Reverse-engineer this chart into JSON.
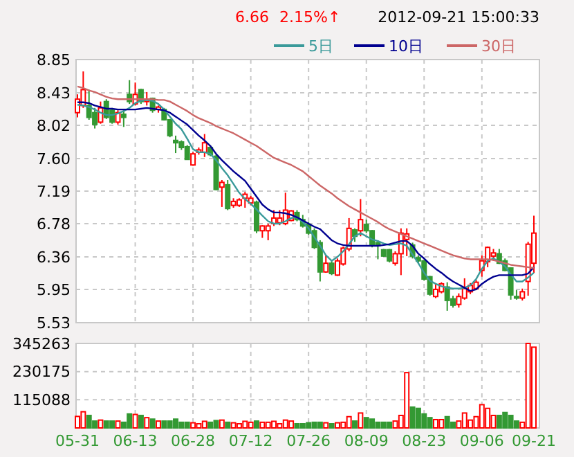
{
  "chart_data": [
    {
      "type": "candlestick",
      "annotations": [
        "6.66",
        "2.15%↑",
        "2012-09-21 15:00:33"
      ],
      "categories": [
        null,
        null,
        null,
        null,
        null,
        null,
        null,
        null,
        null,
        null,
        null,
        null,
        null,
        null,
        null,
        null,
        null,
        null,
        null,
        null,
        null,
        null,
        null,
        null,
        null,
        null,
        null,
        null,
        null,
        null,
        null,
        null,
        null,
        null,
        null,
        null,
        null,
        null,
        null,
        null,
        null,
        null,
        null,
        null,
        null,
        null,
        null,
        null,
        null,
        null,
        null,
        null,
        null,
        null,
        null,
        null,
        null,
        null,
        null,
        null,
        null,
        null,
        null,
        null,
        null,
        null,
        null,
        null,
        null,
        null,
        null,
        null,
        null,
        null,
        null,
        null,
        null,
        null,
        null,
        null
      ],
      "ohlc": [
        [
          8.18,
          8.41,
          8.12,
          8.35
        ],
        [
          8.27,
          8.7,
          8.24,
          8.47
        ],
        [
          8.27,
          8.47,
          8.09,
          8.12
        ],
        [
          8.18,
          8.24,
          7.98,
          8.03
        ],
        [
          8.06,
          8.32,
          8.04,
          8.24
        ],
        [
          8.32,
          8.35,
          8.1,
          8.12
        ],
        [
          8.21,
          8.24,
          8.04,
          8.06
        ],
        [
          8.06,
          8.21,
          8.03,
          8.18
        ],
        [
          8.16,
          8.21,
          8.0,
          8.12
        ],
        [
          8.41,
          8.59,
          8.29,
          8.32
        ],
        [
          8.29,
          8.56,
          8.27,
          8.41
        ],
        [
          8.47,
          8.48,
          8.29,
          8.32
        ],
        [
          8.32,
          8.44,
          8.27,
          8.35
        ],
        [
          8.36,
          8.37,
          8.18,
          8.21
        ],
        [
          8.22,
          8.27,
          8.18,
          8.25
        ],
        [
          8.22,
          8.24,
          8.08,
          8.09
        ],
        [
          8.09,
          8.1,
          7.87,
          7.89
        ],
        [
          7.83,
          7.89,
          7.67,
          7.8
        ],
        [
          7.81,
          7.83,
          7.71,
          7.74
        ],
        [
          7.75,
          7.77,
          7.59,
          7.59
        ],
        [
          7.52,
          7.68,
          7.51,
          7.66
        ],
        [
          7.68,
          7.74,
          7.65,
          7.71
        ],
        [
          7.68,
          7.91,
          7.62,
          7.8
        ],
        [
          7.74,
          7.77,
          7.63,
          7.65
        ],
        [
          7.63,
          7.65,
          7.2,
          7.21
        ],
        [
          7.24,
          7.33,
          6.99,
          7.3
        ],
        [
          7.27,
          7.33,
          6.95,
          6.97
        ],
        [
          7.01,
          7.1,
          6.98,
          7.06
        ],
        [
          7.01,
          7.1,
          6.99,
          7.08
        ],
        [
          7.1,
          7.18,
          6.98,
          7.15
        ],
        [
          7.04,
          7.13,
          7.01,
          7.1
        ],
        [
          7.05,
          7.07,
          6.66,
          6.69
        ],
        [
          6.69,
          6.76,
          6.6,
          6.75
        ],
        [
          6.69,
          6.78,
          6.57,
          6.75
        ],
        [
          6.78,
          6.95,
          6.75,
          6.85
        ],
        [
          6.79,
          6.95,
          6.76,
          6.85
        ],
        [
          6.78,
          7.17,
          6.76,
          6.95
        ],
        [
          6.82,
          6.95,
          6.81,
          6.94
        ],
        [
          6.92,
          6.95,
          6.81,
          6.83
        ],
        [
          6.83,
          6.89,
          6.73,
          6.75
        ],
        [
          6.77,
          6.8,
          6.64,
          6.66
        ],
        [
          6.69,
          6.72,
          6.46,
          6.48
        ],
        [
          6.54,
          6.57,
          6.05,
          6.17
        ],
        [
          6.17,
          6.38,
          6.16,
          6.28
        ],
        [
          6.28,
          6.31,
          6.13,
          6.15
        ],
        [
          6.13,
          6.34,
          6.12,
          6.31
        ],
        [
          6.27,
          6.49,
          6.25,
          6.47
        ],
        [
          6.46,
          6.85,
          6.43,
          6.72
        ],
        [
          6.7,
          6.72,
          6.55,
          6.62
        ],
        [
          6.69,
          7.09,
          6.62,
          6.83
        ],
        [
          6.77,
          6.83,
          6.66,
          6.69
        ],
        [
          6.69,
          6.7,
          6.48,
          6.5
        ],
        [
          6.54,
          6.57,
          6.33,
          6.5
        ],
        [
          6.45,
          6.46,
          6.36,
          6.37
        ],
        [
          6.45,
          6.46,
          6.29,
          6.31
        ],
        [
          6.28,
          6.43,
          6.25,
          6.4
        ],
        [
          6.4,
          6.72,
          6.13,
          6.66
        ],
        [
          6.58,
          6.72,
          6.37,
          6.65
        ],
        [
          6.51,
          6.54,
          6.34,
          6.37
        ],
        [
          6.35,
          6.38,
          6.29,
          6.31
        ],
        [
          6.31,
          6.32,
          6.06,
          6.08
        ],
        [
          6.11,
          6.12,
          5.87,
          5.89
        ],
        [
          5.86,
          6.02,
          5.84,
          5.95
        ],
        [
          5.92,
          6.04,
          5.9,
          6.02
        ],
        [
          5.98,
          6.04,
          5.68,
          5.81
        ],
        [
          5.83,
          5.87,
          5.72,
          5.75
        ],
        [
          5.76,
          5.9,
          5.72,
          5.86
        ],
        [
          5.84,
          6.09,
          5.82,
          5.96
        ],
        [
          5.92,
          6.03,
          5.89,
          6.0
        ],
        [
          5.96,
          6.07,
          5.94,
          6.04
        ],
        [
          6.19,
          6.38,
          6.11,
          6.31
        ],
        [
          6.3,
          6.49,
          6.23,
          6.48
        ],
        [
          6.37,
          6.46,
          6.31,
          6.41
        ],
        [
          6.4,
          6.46,
          6.27,
          6.28
        ],
        [
          6.31,
          6.34,
          6.18,
          6.19
        ],
        [
          6.22,
          6.23,
          5.82,
          5.88
        ],
        [
          5.86,
          5.94,
          5.82,
          5.84
        ],
        [
          5.84,
          5.96,
          5.81,
          5.92
        ],
        [
          6.05,
          6.55,
          5.87,
          6.52
        ],
        [
          6.28,
          6.88,
          6.16,
          6.66
        ]
      ],
      "series": [
        {
          "name": "5日",
          "type": "line",
          "color": "#3a9a9a",
          "values": [
            8.28,
            8.27,
            8.25,
            8.22,
            8.18,
            8.15,
            8.15,
            8.17,
            8.2,
            8.24,
            8.3,
            8.33,
            8.34,
            8.33,
            8.29,
            8.22,
            8.13,
            8.04,
            7.97,
            7.85,
            7.72,
            7.68,
            7.68,
            7.66,
            7.58,
            7.48,
            7.39,
            7.28,
            7.17,
            7.09,
            7.03,
            6.96,
            6.88,
            6.81,
            6.78,
            6.78,
            6.81,
            6.85,
            6.86,
            6.8,
            6.72,
            6.61,
            6.5,
            6.38,
            6.31,
            6.36,
            6.43,
            6.52,
            6.62,
            6.66,
            6.62,
            6.58,
            6.56,
            6.53,
            6.51,
            6.52,
            6.53,
            6.5,
            6.39,
            6.28,
            6.16,
            6.06,
            6.02,
            5.99,
            5.97,
            5.96,
            5.96,
            5.97,
            6.0,
            6.08,
            6.21,
            6.31,
            6.34,
            6.3,
            6.24,
            6.14,
            6.05,
            6.05,
            6.1,
            6.16
          ]
        },
        {
          "name": "10日",
          "type": "line",
          "color": "#000090",
          "values": [
            8.31,
            8.31,
            8.3,
            8.27,
            8.25,
            8.23,
            8.23,
            8.22,
            8.22,
            8.22,
            8.22,
            8.23,
            8.24,
            8.23,
            8.22,
            8.21,
            8.18,
            8.13,
            8.08,
            8.03,
            7.96,
            7.89,
            7.83,
            7.76,
            7.66,
            7.58,
            7.51,
            7.44,
            7.38,
            7.32,
            7.22,
            7.12,
            7.02,
            6.96,
            6.92,
            6.92,
            6.91,
            6.89,
            6.86,
            6.82,
            6.78,
            6.74,
            6.71,
            6.64,
            6.57,
            6.53,
            6.51,
            6.5,
            6.5,
            6.5,
            6.5,
            6.5,
            6.5,
            6.51,
            6.52,
            6.54,
            6.56,
            6.56,
            6.5,
            6.4,
            6.34,
            6.27,
            6.21,
            6.16,
            6.1,
            6.05,
            6.01,
            5.97,
            5.93,
            5.95,
            6.02,
            6.07,
            6.11,
            6.13,
            6.13,
            6.13,
            6.13,
            6.13,
            6.15,
            6.23
          ]
        },
        {
          "name": "30日",
          "type": "line",
          "color": "#cc6666",
          "values": [
            8.51,
            8.49,
            8.46,
            8.44,
            8.41,
            8.38,
            8.36,
            8.35,
            8.35,
            8.35,
            8.35,
            8.35,
            8.35,
            8.35,
            8.34,
            8.34,
            8.32,
            8.28,
            8.24,
            8.2,
            8.15,
            8.11,
            8.08,
            8.05,
            8.01,
            7.98,
            7.95,
            7.92,
            7.88,
            7.84,
            7.8,
            7.76,
            7.71,
            7.66,
            7.61,
            7.58,
            7.55,
            7.52,
            7.48,
            7.44,
            7.38,
            7.32,
            7.26,
            7.21,
            7.16,
            7.1,
            7.05,
            7.0,
            6.96,
            6.92,
            6.88,
            6.84,
            6.8,
            6.75,
            6.71,
            6.68,
            6.65,
            6.62,
            6.59,
            6.56,
            6.53,
            6.5,
            6.47,
            6.44,
            6.41,
            6.38,
            6.36,
            6.34,
            6.33,
            6.33,
            6.33,
            6.33,
            6.32,
            6.3,
            6.28,
            6.26,
            6.25,
            6.24,
            6.23,
            6.22
          ]
        }
      ],
      "ylim": [
        5.53,
        8.85
      ],
      "yticks": [
        5.53,
        5.95,
        6.36,
        6.78,
        7.19,
        {
          "value": 7.6,
          "label": "7.60"
        },
        8.02,
        8.43,
        8.85
      ],
      "grid": true,
      "tick_labels": "y",
      "legend": "top right"
    },
    {
      "type": "bar",
      "categories": [
        "05-31",
        null,
        null,
        null,
        null,
        null,
        null,
        null,
        null,
        null,
        "06-13",
        null,
        null,
        null,
        null,
        null,
        null,
        null,
        null,
        null,
        "06-28",
        null,
        null,
        null,
        null,
        null,
        null,
        null,
        null,
        null,
        "07-12",
        null,
        null,
        null,
        null,
        null,
        null,
        null,
        null,
        null,
        "07-26",
        null,
        null,
        null,
        null,
        null,
        null,
        null,
        null,
        null,
        "08-09",
        null,
        null,
        null,
        null,
        null,
        null,
        null,
        null,
        null,
        "08-23",
        null,
        null,
        null,
        null,
        null,
        null,
        null,
        null,
        null,
        "09-06",
        null,
        null,
        null,
        null,
        null,
        null,
        null,
        null,
        "09-21"
      ],
      "values": [
        47000,
        66000,
        51000,
        28000,
        32000,
        28000,
        28000,
        28000,
        23000,
        57000,
        55000,
        51000,
        42000,
        36000,
        28000,
        28000,
        28000,
        36000,
        23000,
        23000,
        21000,
        17000,
        27000,
        23000,
        30000,
        32000,
        23000,
        21000,
        17000,
        27000,
        23000,
        28000,
        23000,
        23000,
        27000,
        17000,
        32000,
        28000,
        17000,
        17000,
        21000,
        23000,
        23000,
        21000,
        17000,
        21000,
        23000,
        46000,
        28000,
        61000,
        42000,
        36000,
        23000,
        23000,
        23000,
        28000,
        51000,
        226000,
        85000,
        80000,
        57000,
        42000,
        34000,
        34000,
        46000,
        23000,
        28000,
        61000,
        32000,
        46000,
        95000,
        80000,
        51000,
        51000,
        63000,
        51000,
        28000,
        23000,
        345263,
        330000
      ],
      "colors": [
        "#ff0000",
        "#ff0000",
        "#339933",
        "#339933",
        "#ff0000",
        "#339933",
        "#339933",
        "#ff0000",
        "#339933",
        "#339933",
        "#ff0000",
        "#339933",
        "#ff0000",
        "#339933",
        "#ff0000",
        "#339933",
        "#339933",
        "#339933",
        "#339933",
        "#339933",
        "#ff0000",
        "#ff0000",
        "#ff0000",
        "#339933",
        "#339933",
        "#ff0000",
        "#339933",
        "#ff0000",
        "#ff0000",
        "#ff0000",
        "#ff0000",
        "#339933",
        "#ff0000",
        "#ff0000",
        "#ff0000",
        "#ff0000",
        "#ff0000",
        "#ff0000",
        "#339933",
        "#339933",
        "#339933",
        "#339933",
        "#339933",
        "#ff0000",
        "#339933",
        "#ff0000",
        "#ff0000",
        "#ff0000",
        "#339933",
        "#ff0000",
        "#339933",
        "#339933",
        "#339933",
        "#339933",
        "#339933",
        "#ff0000",
        "#ff0000",
        "#ff0000",
        "#339933",
        "#339933",
        "#339933",
        "#339933",
        "#ff0000",
        "#ff0000",
        "#339933",
        "#339933",
        "#ff0000",
        "#ff0000",
        "#ff0000",
        "#ff0000",
        "#ff0000",
        "#ff0000",
        "#ff0000",
        "#339933",
        "#339933",
        "#339933",
        "#339933",
        "#ff0000",
        "#ff0000",
        "#ff0000"
      ],
      "ylim": [
        0,
        345263
      ],
      "yticks": [
        {
          "value": 0,
          "label": null
        },
        115088,
        230175,
        345263
      ],
      "grid": true
    }
  ]
}
